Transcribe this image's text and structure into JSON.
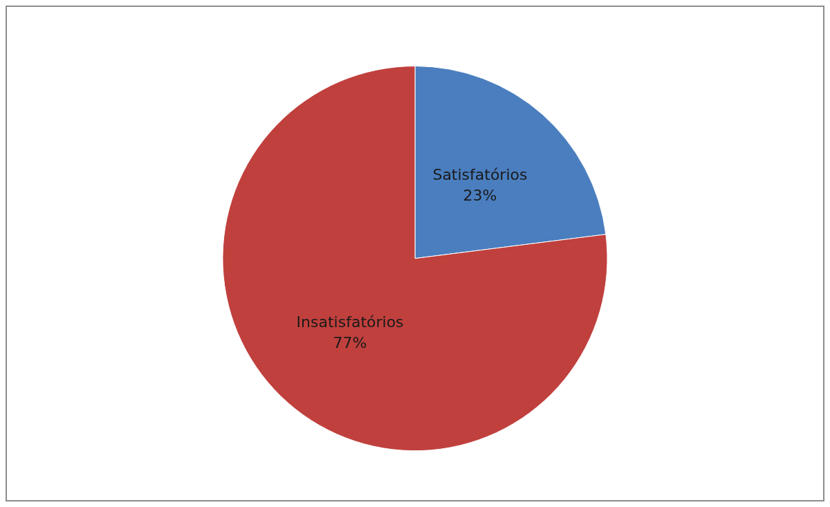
{
  "chart_data": {
    "type": "pie",
    "categories": [
      "Satisfatórios",
      "Insatisfatórios"
    ],
    "values": [
      23,
      77
    ],
    "colors": [
      "#4a7ebf",
      "#c0403d"
    ],
    "value_labels": [
      "23%",
      "77%"
    ],
    "legend": false
  }
}
